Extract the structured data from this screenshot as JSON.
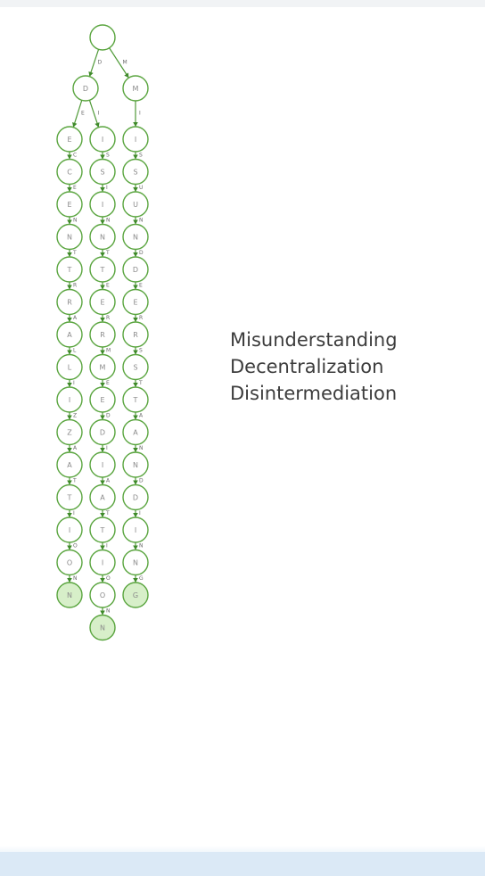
{
  "words": [
    "Misunderstanding",
    "Decentralization",
    "Disintermediation"
  ],
  "root": {
    "letter": "",
    "children": [
      {
        "letter": "D",
        "children": [
          {
            "letter": "E"
          },
          {
            "letter": "I"
          }
        ]
      },
      {
        "letter": "M",
        "children": [
          {
            "letter": "I"
          }
        ]
      }
    ]
  },
  "columns": [
    {
      "name": "decentralization",
      "letters": [
        "E",
        "C",
        "E",
        "N",
        "T",
        "R",
        "A",
        "L",
        "I",
        "Z",
        "A",
        "T",
        "I",
        "O",
        "N"
      ]
    },
    {
      "name": "disintermediation",
      "letters": [
        "I",
        "S",
        "I",
        "N",
        "T",
        "E",
        "R",
        "M",
        "E",
        "D",
        "I",
        "A",
        "T",
        "I",
        "O",
        "N"
      ]
    },
    {
      "name": "misunderstanding",
      "letters": [
        "I",
        "S",
        "U",
        "N",
        "D",
        "E",
        "R",
        "S",
        "T",
        "A",
        "N",
        "D",
        "I",
        "N",
        "G"
      ]
    }
  ],
  "colors": {
    "node_stroke": "#5aa53f",
    "terminal_fill": "#d7efc9",
    "edge": "#4f9a37",
    "text": "#3c3c3c"
  }
}
